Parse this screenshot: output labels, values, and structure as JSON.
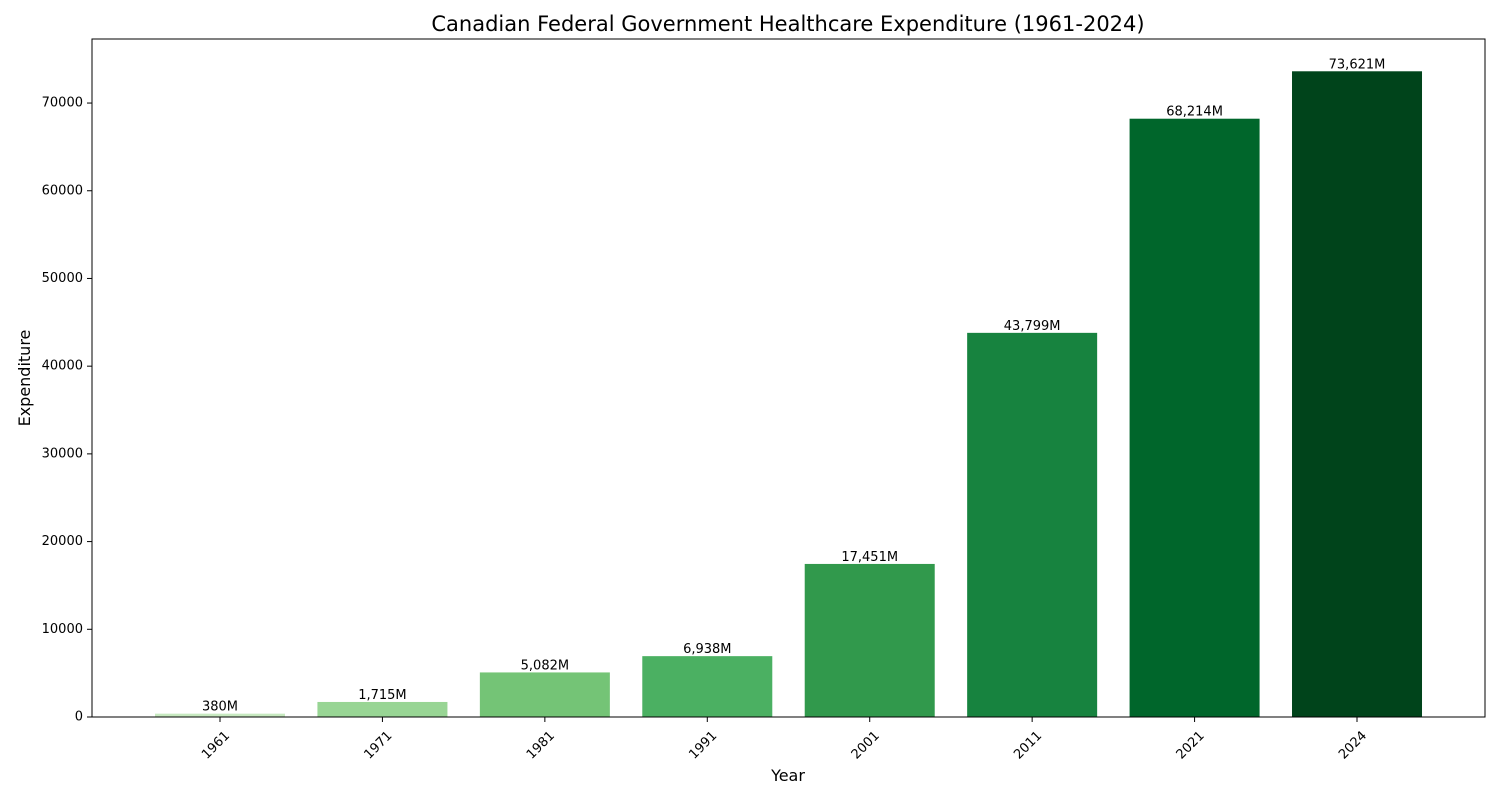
{
  "chart_data": {
    "type": "bar",
    "title": "Canadian Federal Government Healthcare Expenditure (1961-2024)",
    "xlabel": "Year",
    "ylabel": "Expenditure",
    "categories": [
      "1961",
      "1971",
      "1981",
      "1991",
      "2001",
      "2011",
      "2021",
      "2024"
    ],
    "values": [
      380,
      1715,
      5082,
      6938,
      17451,
      43799,
      68214,
      73621
    ],
    "data_labels": [
      "380M",
      "1,715M",
      "5,082M",
      "6,938M",
      "17,451M",
      "43,799M",
      "68,214M",
      "73,621M"
    ],
    "colors": [
      "#c7e9c0",
      "#98d594",
      "#74c476",
      "#4bb062",
      "#31994c",
      "#17833f",
      "#00662b",
      "#00441b"
    ],
    "yticks": [
      0,
      10000,
      20000,
      30000,
      40000,
      50000,
      60000,
      70000
    ],
    "ylim": [
      0,
      77302
    ],
    "grid": false,
    "legend": "none"
  }
}
